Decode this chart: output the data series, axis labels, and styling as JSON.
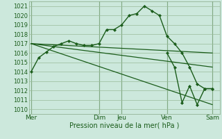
{
  "background_color": "#cce8dc",
  "plot_bg_color": "#cce8dc",
  "grid_color": "#99bb99",
  "line_color": "#1a5c1a",
  "marker_color": "#1a5c1a",
  "xlabel": "Pression niveau de la mer( hPa )",
  "ylim": [
    1009.5,
    1021.5
  ],
  "yticks": [
    1010,
    1011,
    1012,
    1013,
    1014,
    1015,
    1016,
    1017,
    1018,
    1019,
    1020,
    1021
  ],
  "day_labels": [
    "Mer",
    "Dim",
    "Jeu",
    "Ven",
    "Sam"
  ],
  "day_positions": [
    0,
    9,
    12,
    18,
    24
  ],
  "xlim": [
    -0.3,
    25.0
  ],
  "series1_x": [
    0,
    1,
    2,
    3,
    4,
    5,
    6,
    7,
    8,
    9,
    10,
    11,
    12,
    13,
    14,
    15,
    16,
    17,
    18,
    19,
    20,
    21,
    22,
    23,
    24
  ],
  "series1_y": [
    1014.0,
    1015.5,
    1016.1,
    1016.7,
    1017.0,
    1017.3,
    1017.0,
    1016.8,
    1016.8,
    1017.0,
    1018.5,
    1018.5,
    1019.0,
    1020.0,
    1020.2,
    1021.0,
    1020.5,
    1020.0,
    1017.8,
    1017.0,
    1016.0,
    1014.5,
    1012.7,
    1012.2,
    1012.2
  ],
  "series2_x": [
    0,
    24
  ],
  "series2_y": [
    1017.0,
    1016.0
  ],
  "series3_x": [
    0,
    24
  ],
  "series3_y": [
    1017.0,
    1014.5
  ],
  "series4_x": [
    0,
    24
  ],
  "series4_y": [
    1017.0,
    1010.5
  ],
  "series5_x": [
    18,
    19,
    20,
    21,
    22,
    23,
    24
  ],
  "series5_y": [
    1016.0,
    1014.5,
    1010.7,
    1012.5,
    1010.5,
    1012.2,
    1012.2
  ]
}
